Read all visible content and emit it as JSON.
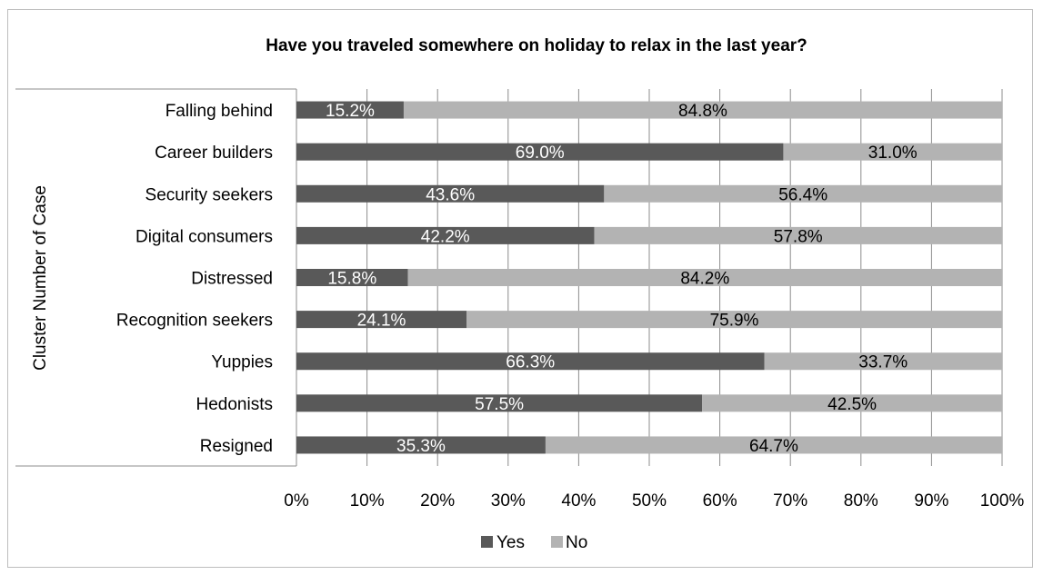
{
  "chart_data": {
    "type": "bar",
    "orientation": "horizontal",
    "stacked": "100%",
    "title": "Have you traveled somewhere on holiday to relax in the last year?",
    "ylabel": "Cluster Number of Case",
    "categories": [
      "Falling behind",
      "Career builders",
      "Security seekers",
      "Digital consumers",
      "Distressed",
      "Recognition seekers",
      "Yuppies",
      "Hedonists",
      "Resigned"
    ],
    "series": [
      {
        "name": "Yes",
        "color": "#595959",
        "values": [
          15.2,
          69.0,
          43.6,
          42.2,
          15.8,
          24.1,
          66.3,
          57.5,
          35.3
        ],
        "labels": [
          "15.2%",
          "69.0%",
          "43.6%",
          "42.2%",
          "15.8%",
          "24.1%",
          "66.3%",
          "57.5%",
          "35.3%"
        ]
      },
      {
        "name": "No",
        "color": "#b3b3b3",
        "values": [
          84.8,
          31.0,
          56.4,
          57.8,
          84.2,
          75.9,
          33.7,
          42.5,
          64.7
        ],
        "labels": [
          "84.8%",
          "31.0%",
          "56.4%",
          "57.8%",
          "84.2%",
          "75.9%",
          "33.7%",
          "42.5%",
          "64.7%"
        ]
      }
    ],
    "xlim": [
      0,
      100
    ],
    "xticks": [
      "0%",
      "10%",
      "20%",
      "30%",
      "40%",
      "50%",
      "60%",
      "70%",
      "80%",
      "90%",
      "100%"
    ],
    "grid": true,
    "legend_position": "bottom"
  }
}
